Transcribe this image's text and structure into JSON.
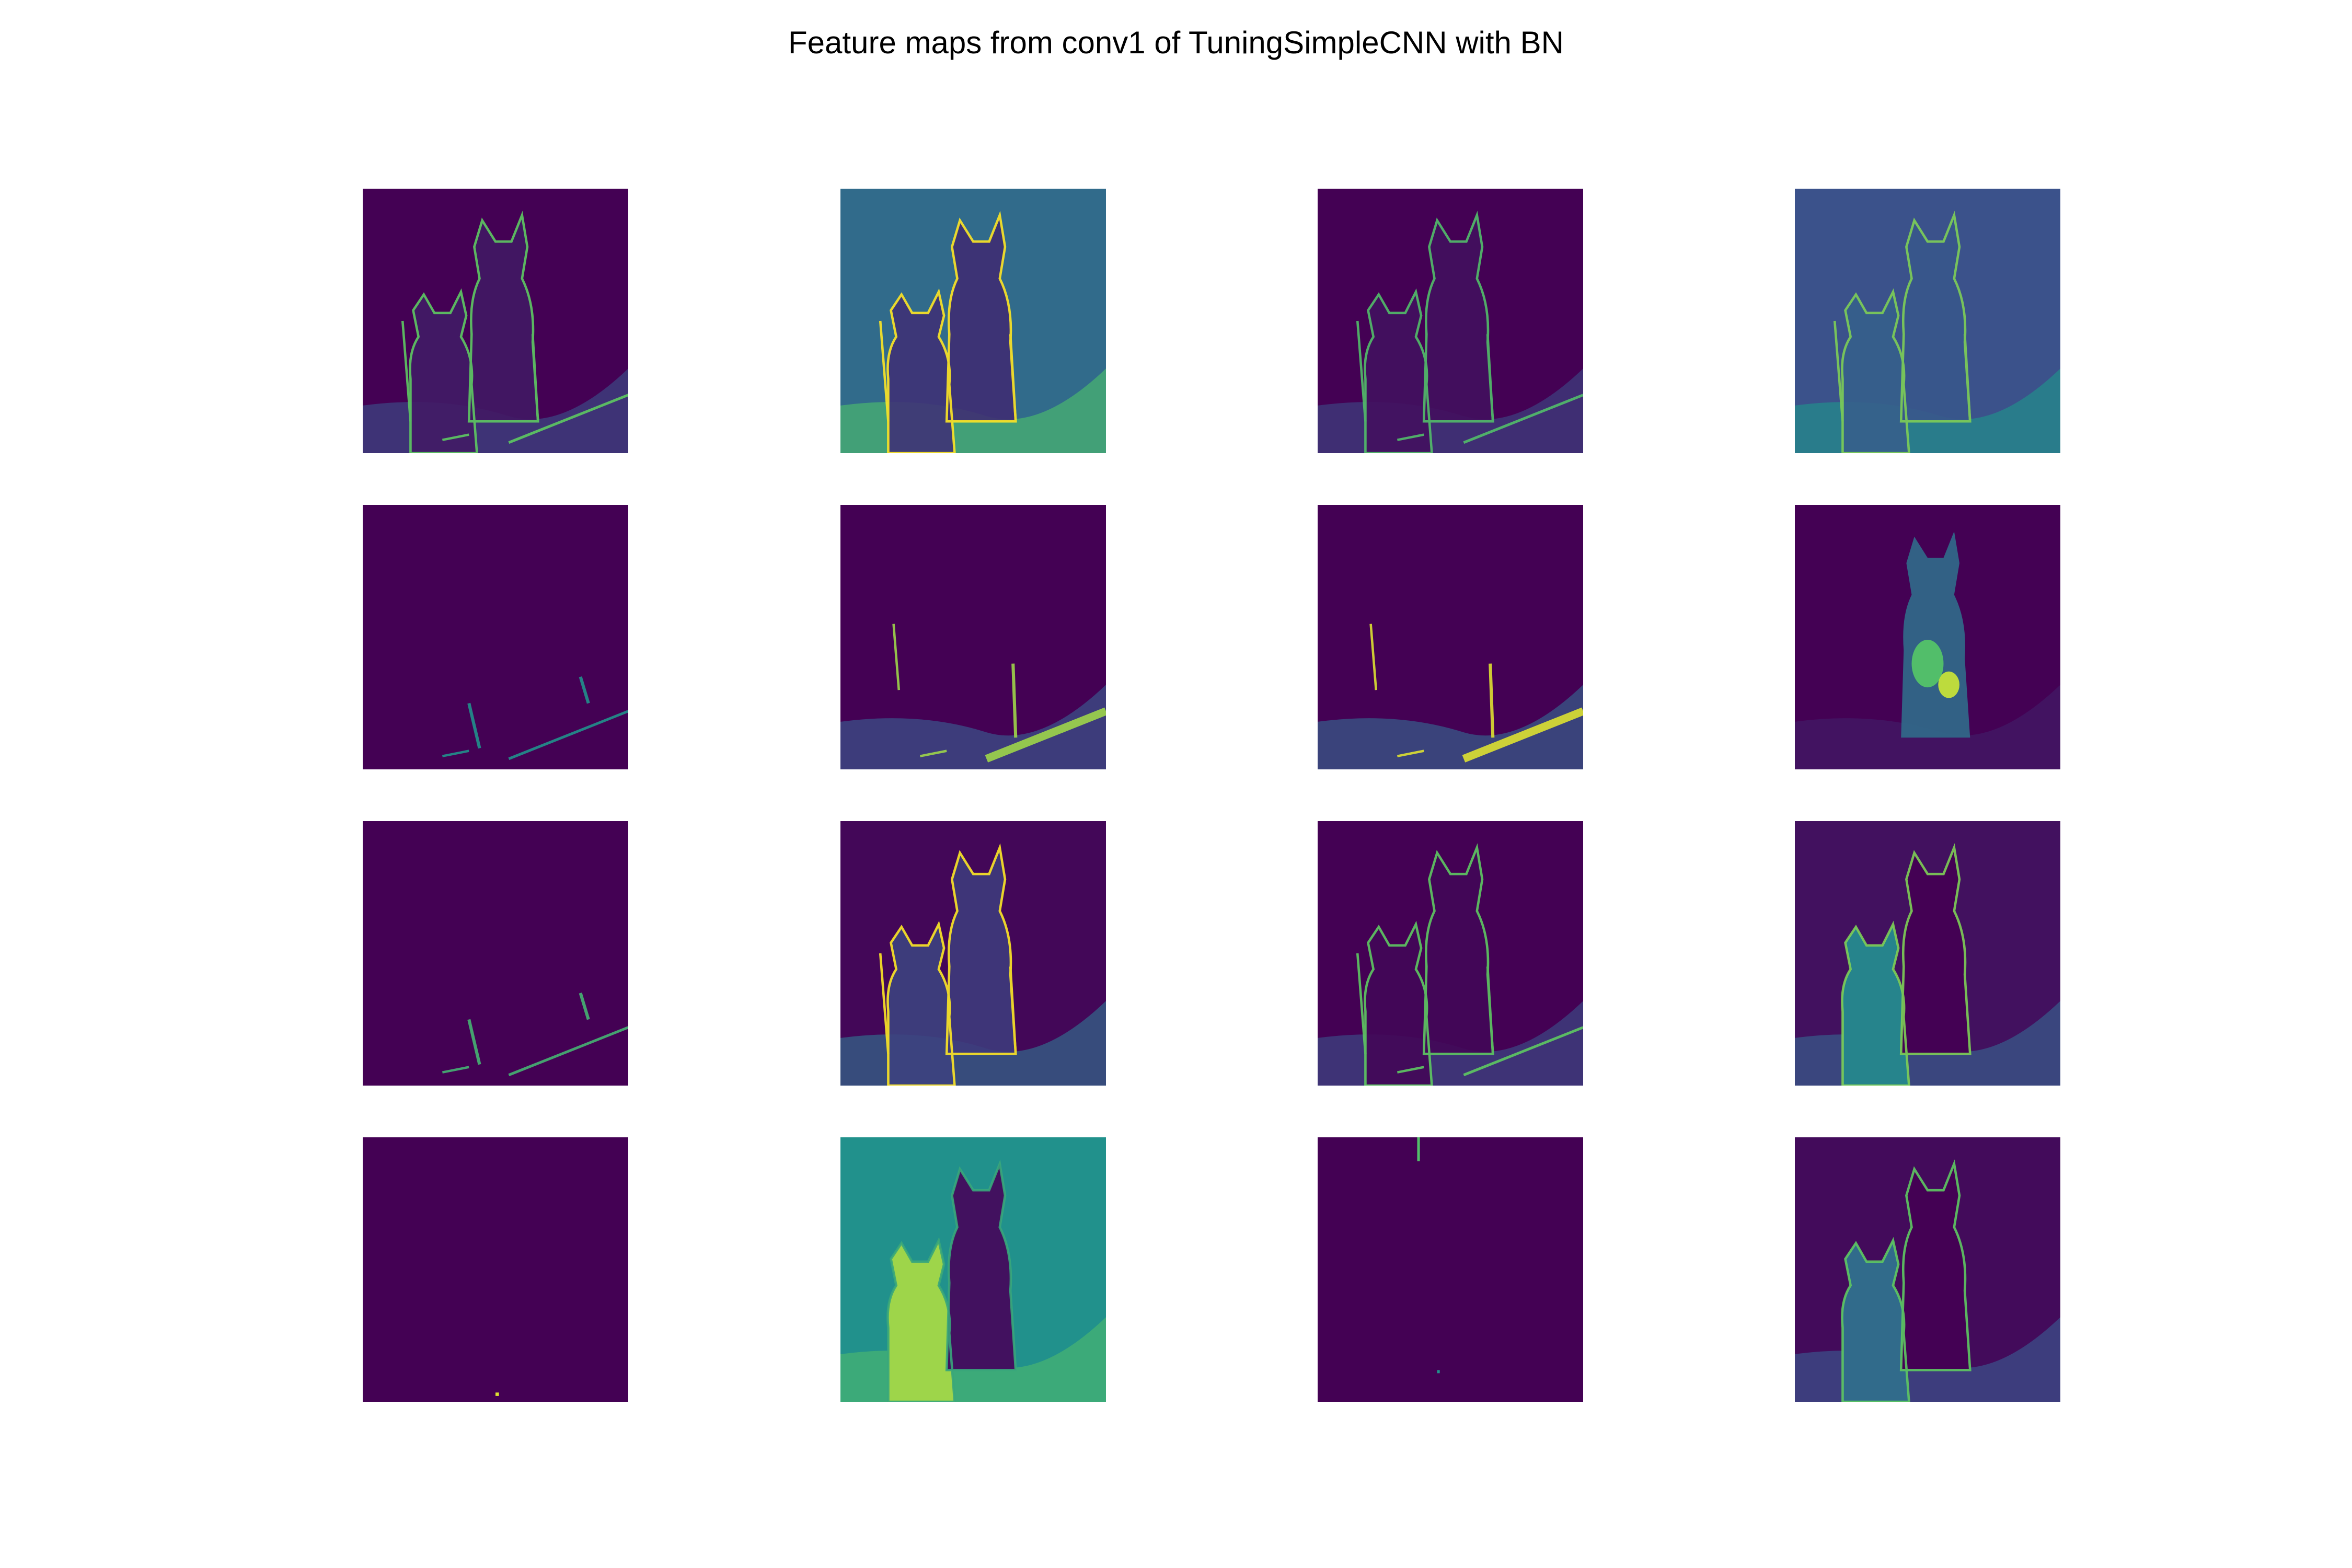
{
  "figure": {
    "title": "Feature maps from conv1 of TuningSimpleCNN with BN"
  },
  "colormap": {
    "name": "viridis",
    "stops": [
      "#440154",
      "#3b528b",
      "#21918c",
      "#5ec962",
      "#fde725"
    ]
  },
  "feature_maps": [
    {
      "row": 1,
      "col": 1,
      "base": 0.0,
      "cat": 0.08,
      "edges": 0.55,
      "pattern": "sparse-edges"
    },
    {
      "row": 1,
      "col": 2,
      "base": 0.35,
      "cat": 0.15,
      "edges": 0.8,
      "pattern": "bright-background"
    },
    {
      "row": 1,
      "col": 3,
      "base": 0.0,
      "cat": 0.05,
      "edges": 0.5,
      "pattern": "sparse-edges"
    },
    {
      "row": 1,
      "col": 4,
      "base": 0.25,
      "cat": 0.3,
      "edges": 0.6,
      "pattern": "textured"
    },
    {
      "row": 2,
      "col": 1,
      "base": 0.0,
      "cat": 0.0,
      "edges": 0.3,
      "pattern": "near-empty"
    },
    {
      "row": 2,
      "col": 2,
      "base": 0.0,
      "cat": 0.02,
      "edges": 0.65,
      "pattern": "floor-edges"
    },
    {
      "row": 2,
      "col": 3,
      "base": 0.0,
      "cat": 0.1,
      "edges": 0.75,
      "pattern": "floor-edges"
    },
    {
      "row": 2,
      "col": 4,
      "base": 0.0,
      "cat": 0.7,
      "edges": 0.2,
      "pattern": "cat-blob"
    },
    {
      "row": 3,
      "col": 1,
      "base": 0.0,
      "cat": 0.0,
      "edges": 0.45,
      "pattern": "near-empty"
    },
    {
      "row": 3,
      "col": 2,
      "base": 0.02,
      "cat": 0.2,
      "edges": 0.8,
      "pattern": "outline"
    },
    {
      "row": 3,
      "col": 3,
      "base": 0.0,
      "cat": 0.02,
      "edges": 0.55,
      "pattern": "sparse-edges"
    },
    {
      "row": 3,
      "col": 4,
      "base": 0.05,
      "cat": 0.45,
      "edges": 0.6,
      "pattern": "left-cat-bright"
    },
    {
      "row": 4,
      "col": 1,
      "base": 0.0,
      "cat": 0.0,
      "edges": 0.0,
      "pattern": "empty-dot"
    },
    {
      "row": 4,
      "col": 2,
      "base": 0.5,
      "cat": 0.85,
      "edges": 0.4,
      "pattern": "bright-left-cat"
    },
    {
      "row": 4,
      "col": 3,
      "base": 0.0,
      "cat": 0.0,
      "edges": 0.0,
      "pattern": "empty-line"
    },
    {
      "row": 4,
      "col": 4,
      "base": 0.03,
      "cat": 0.35,
      "edges": 0.55,
      "pattern": "left-cat-bright"
    }
  ]
}
